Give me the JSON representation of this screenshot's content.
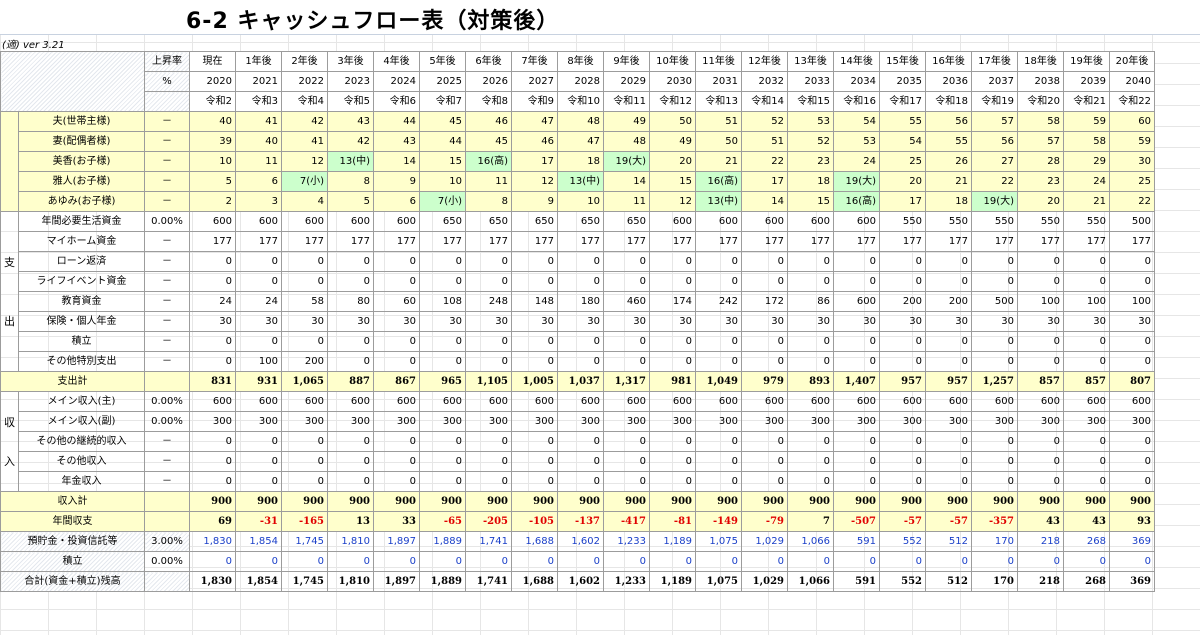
{
  "sheet": {
    "title": "6-2 キャッシュフロー表（対策後）",
    "version": "(適) ver  3.21"
  },
  "header": {
    "rate_label": "上昇率",
    "rate_unit": "%",
    "years_label": [
      "現在",
      "1年後",
      "2年後",
      "3年後",
      "4年後",
      "5年後",
      "6年後",
      "7年後",
      "8年後",
      "9年後",
      "10年後",
      "11年後",
      "12年後",
      "13年後",
      "14年後",
      "15年後",
      "16年後",
      "17年後",
      "18年後",
      "19年後",
      "20年後"
    ],
    "years": [
      "2020",
      "2021",
      "2022",
      "2023",
      "2024",
      "2025",
      "2026",
      "2027",
      "2028",
      "2029",
      "2030",
      "2031",
      "2032",
      "2033",
      "2034",
      "2035",
      "2036",
      "2037",
      "2038",
      "2039",
      "2040"
    ],
    "era": [
      "令和2",
      "令和3",
      "令和4",
      "令和5",
      "令和6",
      "令和7",
      "令和8",
      "令和9",
      "令和10",
      "令和11",
      "令和12",
      "令和13",
      "令和14",
      "令和15",
      "令和16",
      "令和17",
      "令和18",
      "令和19",
      "令和20",
      "令和21",
      "令和22"
    ]
  },
  "family": [
    {
      "name": "夫(世帯主様)",
      "rate": "－",
      "values": [
        "40",
        "41",
        "42",
        "43",
        "44",
        "45",
        "46",
        "47",
        "48",
        "49",
        "50",
        "51",
        "52",
        "53",
        "54",
        "55",
        "56",
        "57",
        "58",
        "59",
        "60"
      ]
    },
    {
      "name": "妻(配偶者様)",
      "rate": "－",
      "values": [
        "39",
        "40",
        "41",
        "42",
        "43",
        "44",
        "45",
        "46",
        "47",
        "48",
        "49",
        "50",
        "51",
        "52",
        "53",
        "54",
        "55",
        "56",
        "57",
        "58",
        "59"
      ]
    },
    {
      "name": "美香(お子様)",
      "rate": "－",
      "values": [
        "10",
        "11",
        "12",
        "13(中)",
        "14",
        "15",
        "16(高)",
        "17",
        "18",
        "19(大)",
        "20",
        "21",
        "22",
        "23",
        "24",
        "25",
        "26",
        "27",
        "28",
        "29",
        "30"
      ]
    },
    {
      "name": "雅人(お子様)",
      "rate": "－",
      "values": [
        "5",
        "6",
        "7(小)",
        "8",
        "9",
        "10",
        "11",
        "12",
        "13(中)",
        "14",
        "15",
        "16(高)",
        "17",
        "18",
        "19(大)",
        "20",
        "21",
        "22",
        "23",
        "24",
        "25"
      ]
    },
    {
      "name": "あゆみ(お子様)",
      "rate": "－",
      "values": [
        "2",
        "3",
        "4",
        "5",
        "6",
        "7(小)",
        "8",
        "9",
        "10",
        "11",
        "12",
        "13(中)",
        "14",
        "15",
        "16(高)",
        "17",
        "18",
        "19(大)",
        "20",
        "21",
        "22"
      ]
    }
  ],
  "expense_side": [
    "支",
    "出"
  ],
  "expenses": [
    {
      "name": "年間必要生活資金",
      "rate": "0.00%",
      "values": [
        "600",
        "600",
        "600",
        "600",
        "600",
        "650",
        "650",
        "650",
        "650",
        "650",
        "600",
        "600",
        "600",
        "600",
        "600",
        "550",
        "550",
        "550",
        "550",
        "550",
        "500"
      ]
    },
    {
      "name": "マイホーム資金",
      "rate": "－",
      "values": [
        "177",
        "177",
        "177",
        "177",
        "177",
        "177",
        "177",
        "177",
        "177",
        "177",
        "177",
        "177",
        "177",
        "177",
        "177",
        "177",
        "177",
        "177",
        "177",
        "177",
        "177"
      ]
    },
    {
      "name": "ローン返済",
      "rate": "－",
      "values": [
        "0",
        "0",
        "0",
        "0",
        "0",
        "0",
        "0",
        "0",
        "0",
        "0",
        "0",
        "0",
        "0",
        "0",
        "0",
        "0",
        "0",
        "0",
        "0",
        "0",
        "0"
      ]
    },
    {
      "name": "ライフイベント資金",
      "rate": "－",
      "values": [
        "0",
        "0",
        "0",
        "0",
        "0",
        "0",
        "0",
        "0",
        "0",
        "0",
        "0",
        "0",
        "0",
        "0",
        "0",
        "0",
        "0",
        "0",
        "0",
        "0",
        "0"
      ]
    },
    {
      "name": "教育資金",
      "rate": "－",
      "values": [
        "24",
        "24",
        "58",
        "80",
        "60",
        "108",
        "248",
        "148",
        "180",
        "460",
        "174",
        "242",
        "172",
        "86",
        "600",
        "200",
        "200",
        "500",
        "100",
        "100",
        "100"
      ]
    },
    {
      "name": "保険・個人年金",
      "rate": "－",
      "values": [
        "30",
        "30",
        "30",
        "30",
        "30",
        "30",
        "30",
        "30",
        "30",
        "30",
        "30",
        "30",
        "30",
        "30",
        "30",
        "30",
        "30",
        "30",
        "30",
        "30",
        "30"
      ]
    },
    {
      "name": "積立",
      "rate": "－",
      "values": [
        "0",
        "0",
        "0",
        "0",
        "0",
        "0",
        "0",
        "0",
        "0",
        "0",
        "0",
        "0",
        "0",
        "0",
        "0",
        "0",
        "0",
        "0",
        "0",
        "0",
        "0"
      ]
    },
    {
      "name": "その他特別支出",
      "rate": "－",
      "values": [
        "0",
        "100",
        "200",
        "0",
        "0",
        "0",
        "0",
        "0",
        "0",
        "0",
        "0",
        "0",
        "0",
        "0",
        "0",
        "0",
        "0",
        "0",
        "0",
        "0",
        "0"
      ]
    }
  ],
  "expense_total": {
    "name": "支出計",
    "values": [
      "831",
      "931",
      "1,065",
      "887",
      "867",
      "965",
      "1,105",
      "1,005",
      "1,037",
      "1,317",
      "981",
      "1,049",
      "979",
      "893",
      "1,407",
      "957",
      "957",
      "1,257",
      "857",
      "857",
      "807"
    ]
  },
  "income_side": [
    "収",
    "入"
  ],
  "incomes": [
    {
      "name": "メイン収入(主)",
      "rate": "0.00%",
      "values": [
        "600",
        "600",
        "600",
        "600",
        "600",
        "600",
        "600",
        "600",
        "600",
        "600",
        "600",
        "600",
        "600",
        "600",
        "600",
        "600",
        "600",
        "600",
        "600",
        "600",
        "600"
      ]
    },
    {
      "name": "メイン収入(副)",
      "rate": "0.00%",
      "values": [
        "300",
        "300",
        "300",
        "300",
        "300",
        "300",
        "300",
        "300",
        "300",
        "300",
        "300",
        "300",
        "300",
        "300",
        "300",
        "300",
        "300",
        "300",
        "300",
        "300",
        "300"
      ]
    },
    {
      "name": "その他の継続的収入",
      "rate": "－",
      "values": [
        "0",
        "0",
        "0",
        "0",
        "0",
        "0",
        "0",
        "0",
        "0",
        "0",
        "0",
        "0",
        "0",
        "0",
        "0",
        "0",
        "0",
        "0",
        "0",
        "0",
        "0"
      ]
    },
    {
      "name": "その他収入",
      "rate": "－",
      "values": [
        "0",
        "0",
        "0",
        "0",
        "0",
        "0",
        "0",
        "0",
        "0",
        "0",
        "0",
        "0",
        "0",
        "0",
        "0",
        "0",
        "0",
        "0",
        "0",
        "0",
        "0"
      ]
    },
    {
      "name": "年金収入",
      "rate": "－",
      "values": [
        "0",
        "0",
        "0",
        "0",
        "0",
        "0",
        "0",
        "0",
        "0",
        "0",
        "0",
        "0",
        "0",
        "0",
        "0",
        "0",
        "0",
        "0",
        "0",
        "0",
        "0"
      ]
    }
  ],
  "income_total": {
    "name": "収入計",
    "values": [
      "900",
      "900",
      "900",
      "900",
      "900",
      "900",
      "900",
      "900",
      "900",
      "900",
      "900",
      "900",
      "900",
      "900",
      "900",
      "900",
      "900",
      "900",
      "900",
      "900",
      "900"
    ]
  },
  "annual_balance": {
    "name": "年間収支",
    "values": [
      "69",
      "-31",
      "-165",
      "13",
      "33",
      "-65",
      "-205",
      "-105",
      "-137",
      "-417",
      "-81",
      "-149",
      "-79",
      "7",
      "-507",
      "-57",
      "-57",
      "-357",
      "43",
      "43",
      "93"
    ]
  },
  "savings": {
    "name": "預貯金・投資信託等",
    "rate": "3.00%",
    "values": [
      "1,830",
      "1,854",
      "1,745",
      "1,810",
      "1,897",
      "1,889",
      "1,741",
      "1,688",
      "1,602",
      "1,233",
      "1,189",
      "1,075",
      "1,029",
      "1,066",
      "591",
      "552",
      "512",
      "170",
      "218",
      "268",
      "369"
    ]
  },
  "reserve": {
    "name": "積立",
    "rate": "0.00%",
    "values": [
      "0",
      "0",
      "0",
      "0",
      "0",
      "0",
      "0",
      "0",
      "0",
      "0",
      "0",
      "0",
      "0",
      "0",
      "0",
      "0",
      "0",
      "0",
      "0",
      "0",
      "0"
    ]
  },
  "grand_total": {
    "name": "合計(資金+積立)残高",
    "values": [
      "1,830",
      "1,854",
      "1,745",
      "1,810",
      "1,897",
      "1,889",
      "1,741",
      "1,688",
      "1,602",
      "1,233",
      "1,189",
      "1,075",
      "1,029",
      "1,066",
      "591",
      "552",
      "512",
      "170",
      "218",
      "268",
      "369"
    ]
  }
}
